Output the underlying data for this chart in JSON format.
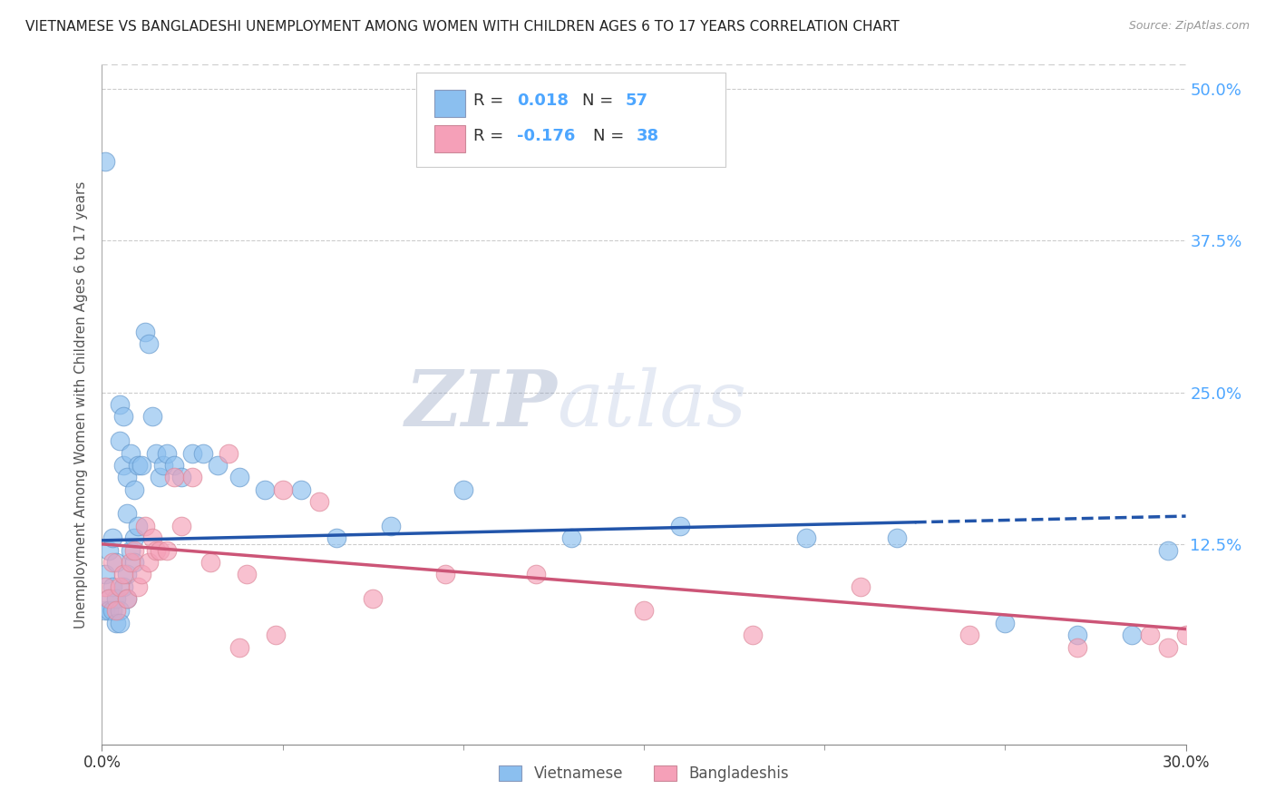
{
  "title": "VIETNAMESE VS BANGLADESHI UNEMPLOYMENT AMONG WOMEN WITH CHILDREN AGES 6 TO 17 YEARS CORRELATION CHART",
  "source": "Source: ZipAtlas.com",
  "ylabel": "Unemployment Among Women with Children Ages 6 to 17 years",
  "ytick_labels": [
    "12.5%",
    "25.0%",
    "37.5%",
    "50.0%"
  ],
  "ytick_values": [
    0.125,
    0.25,
    0.375,
    0.5
  ],
  "right_tick_color": "#4da6ff",
  "blue_color": "#8bbfef",
  "pink_color": "#f5a0b8",
  "trend_blue": "#2255aa",
  "trend_pink": "#cc5577",
  "watermark_zip": "ZIP",
  "watermark_atlas": "atlas",
  "xmin": 0.0,
  "xmax": 0.3,
  "ymin": -0.04,
  "ymax": 0.52,
  "vietnamese_x": [
    0.001,
    0.001,
    0.001,
    0.002,
    0.002,
    0.002,
    0.003,
    0.003,
    0.003,
    0.004,
    0.004,
    0.004,
    0.005,
    0.005,
    0.005,
    0.006,
    0.006,
    0.006,
    0.007,
    0.007,
    0.007,
    0.008,
    0.008,
    0.009,
    0.009,
    0.01,
    0.01,
    0.011,
    0.012,
    0.013,
    0.014,
    0.015,
    0.016,
    0.017,
    0.018,
    0.02,
    0.022,
    0.025,
    0.028,
    0.032,
    0.038,
    0.045,
    0.055,
    0.065,
    0.08,
    0.1,
    0.13,
    0.16,
    0.195,
    0.22,
    0.25,
    0.27,
    0.285,
    0.295,
    0.005,
    0.007,
    0.009
  ],
  "vietnamese_y": [
    0.44,
    0.1,
    0.07,
    0.08,
    0.12,
    0.07,
    0.09,
    0.13,
    0.07,
    0.11,
    0.08,
    0.06,
    0.24,
    0.21,
    0.07,
    0.23,
    0.19,
    0.09,
    0.18,
    0.15,
    0.1,
    0.2,
    0.12,
    0.17,
    0.13,
    0.19,
    0.14,
    0.19,
    0.3,
    0.29,
    0.23,
    0.2,
    0.18,
    0.19,
    0.2,
    0.19,
    0.18,
    0.2,
    0.2,
    0.19,
    0.18,
    0.17,
    0.17,
    0.13,
    0.14,
    0.17,
    0.13,
    0.14,
    0.13,
    0.13,
    0.06,
    0.05,
    0.05,
    0.12,
    0.06,
    0.08,
    0.11
  ],
  "bangladeshi_x": [
    0.001,
    0.002,
    0.003,
    0.004,
    0.005,
    0.006,
    0.007,
    0.008,
    0.009,
    0.01,
    0.011,
    0.012,
    0.013,
    0.014,
    0.015,
    0.016,
    0.018,
    0.02,
    0.022,
    0.025,
    0.03,
    0.035,
    0.04,
    0.05,
    0.06,
    0.075,
    0.095,
    0.12,
    0.15,
    0.18,
    0.21,
    0.24,
    0.27,
    0.29,
    0.295,
    0.3,
    0.038,
    0.048
  ],
  "bangladeshi_y": [
    0.09,
    0.08,
    0.11,
    0.07,
    0.09,
    0.1,
    0.08,
    0.11,
    0.12,
    0.09,
    0.1,
    0.14,
    0.11,
    0.13,
    0.12,
    0.12,
    0.12,
    0.18,
    0.14,
    0.18,
    0.11,
    0.2,
    0.1,
    0.17,
    0.16,
    0.08,
    0.1,
    0.1,
    0.07,
    0.05,
    0.09,
    0.05,
    0.04,
    0.05,
    0.04,
    0.05,
    0.04,
    0.05
  ],
  "viet_trend_x0": 0.0,
  "viet_trend_x1": 0.3,
  "viet_trend_y0": 0.128,
  "viet_trend_y1": 0.148,
  "bang_trend_x0": 0.0,
  "bang_trend_x1": 0.3,
  "bang_trend_y0": 0.125,
  "bang_trend_y1": 0.055
}
